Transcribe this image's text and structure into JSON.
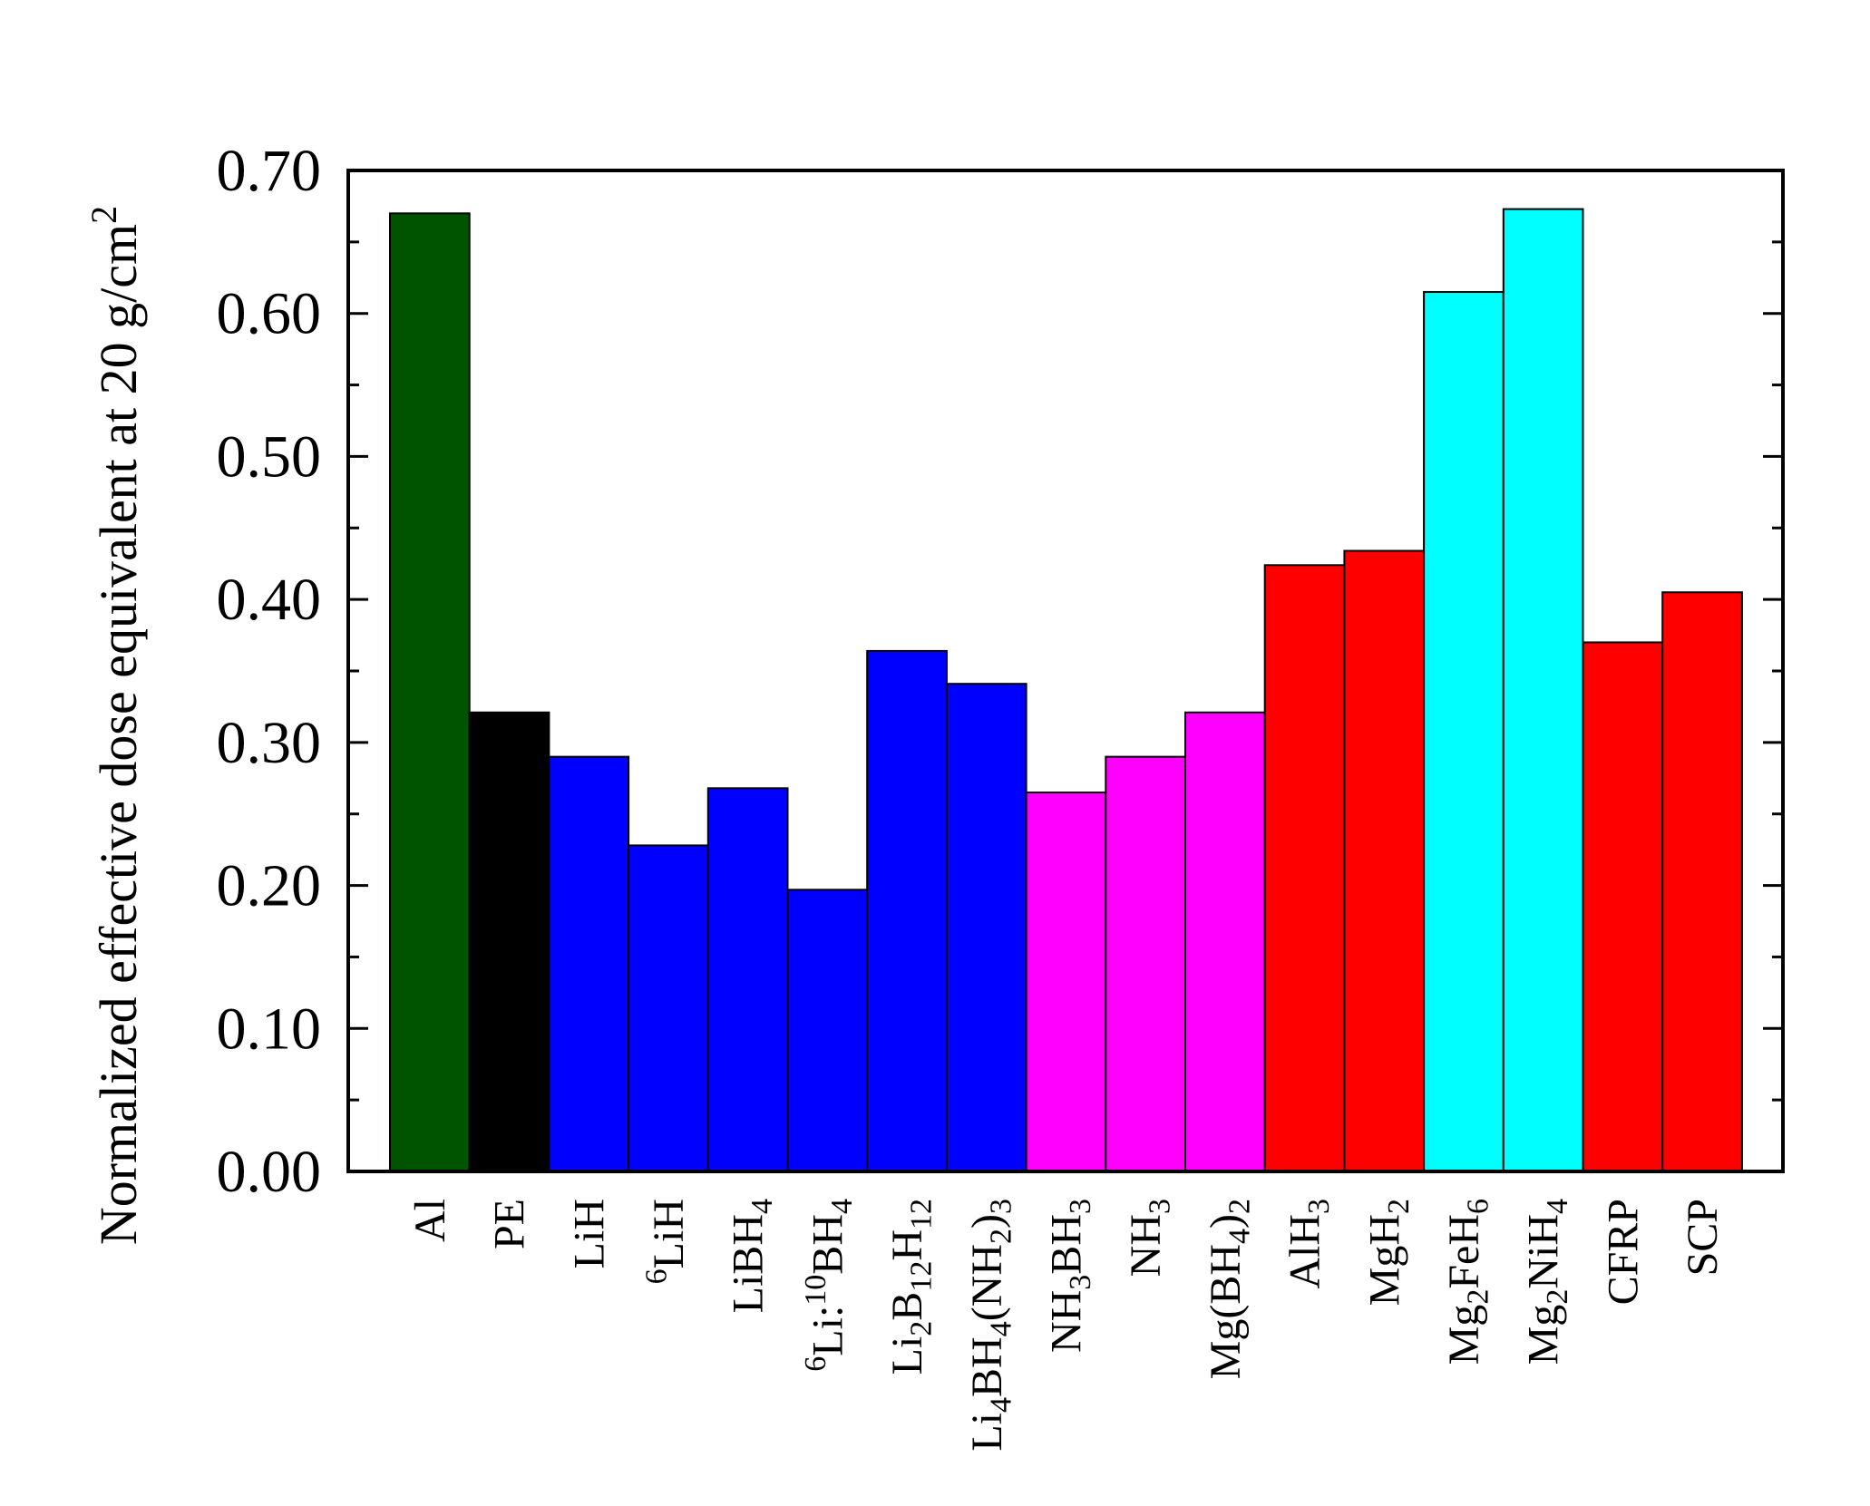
{
  "chart_data": {
    "type": "bar",
    "title": "",
    "xlabel": "",
    "ylabel": "Normalized effective dose equivalent at 20 g/cm^2",
    "ylim": [
      0,
      0.7
    ],
    "yticks": [
      "0.00",
      "0.10",
      "0.20",
      "0.30",
      "0.40",
      "0.50",
      "0.60",
      "0.70"
    ],
    "grid": false,
    "legend": "none",
    "categories": [
      "Al",
      "PE",
      "LiH",
      "^6LiH",
      "LiBH_4",
      "^6Li:^10BH_4",
      "Li_2B_12H_12",
      "Li_4BH_4(NH_2)_3",
      "NH_3BH_3",
      "NH_3",
      "Mg(BH_4)_2",
      "AlH_3",
      "MgH_2",
      "Mg_2FeH_6",
      "Mg_2NiH_4",
      "CFRP",
      "SCP"
    ],
    "values": [
      0.67,
      0.321,
      0.29,
      0.228,
      0.268,
      0.197,
      0.364,
      0.341,
      0.265,
      0.29,
      0.321,
      0.424,
      0.434,
      0.615,
      0.673,
      0.37,
      0.405
    ],
    "colors": [
      "#005400",
      "#000000",
      "#0000ff",
      "#0000ff",
      "#0000ff",
      "#0000ff",
      "#0000ff",
      "#0000ff",
      "#ff00ff",
      "#ff00ff",
      "#ff00ff",
      "#ff0000",
      "#ff0000",
      "#00ffff",
      "#00ffff",
      "#ff0000",
      "#ff0000"
    ]
  }
}
